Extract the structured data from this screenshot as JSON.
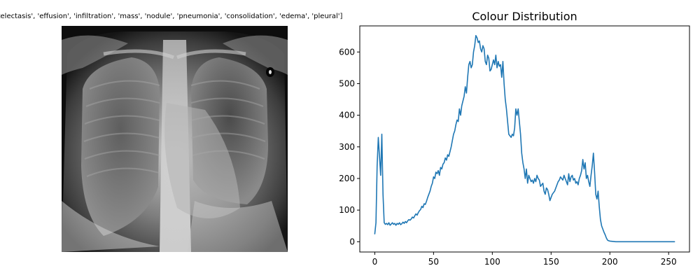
{
  "figure": {
    "image_panel": {
      "title": "bel: ['atelectasis', 'effusion', 'infiltration', 'mass', 'nodule', 'pneumonia', 'consolidation', 'edema', 'pleural']",
      "image_description": "chest-xray"
    }
  },
  "chart_data": {
    "type": "line",
    "title": "Colour Distribution",
    "xlabel": "",
    "ylabel": "",
    "xlim": [
      -12.75,
      267.75
    ],
    "ylim": [
      -32.5,
      682.5
    ],
    "xticks": [
      0,
      50,
      100,
      150,
      200,
      250
    ],
    "yticks": [
      0,
      100,
      200,
      300,
      400,
      500,
      600
    ],
    "grid": false,
    "legend": "none",
    "series": [
      {
        "color": "#1f77b4",
        "x": [
          0,
          1,
          2,
          3,
          4,
          5,
          6,
          7,
          8,
          9,
          10,
          11,
          12,
          13,
          14,
          15,
          16,
          17,
          18,
          19,
          20,
          21,
          22,
          23,
          24,
          25,
          26,
          27,
          28,
          29,
          30,
          31,
          32,
          33,
          34,
          35,
          36,
          37,
          38,
          39,
          40,
          41,
          42,
          43,
          44,
          45,
          46,
          47,
          48,
          49,
          50,
          51,
          52,
          53,
          54,
          55,
          56,
          57,
          58,
          59,
          60,
          61,
          62,
          63,
          64,
          65,
          66,
          67,
          68,
          69,
          70,
          71,
          72,
          73,
          74,
          75,
          76,
          77,
          78,
          79,
          80,
          81,
          82,
          83,
          84,
          85,
          86,
          87,
          88,
          89,
          90,
          91,
          92,
          93,
          94,
          95,
          96,
          97,
          98,
          99,
          100,
          101,
          102,
          103,
          104,
          105,
          106,
          107,
          108,
          109,
          110,
          111,
          112,
          113,
          114,
          115,
          116,
          117,
          118,
          119,
          120,
          121,
          122,
          123,
          124,
          125,
          126,
          127,
          128,
          129,
          130,
          131,
          132,
          133,
          134,
          135,
          136,
          137,
          138,
          139,
          140,
          141,
          142,
          143,
          144,
          145,
          146,
          147,
          148,
          149,
          150,
          151,
          152,
          153,
          154,
          155,
          156,
          157,
          158,
          159,
          160,
          161,
          162,
          163,
          164,
          165,
          166,
          167,
          168,
          169,
          170,
          171,
          172,
          173,
          174,
          175,
          176,
          177,
          178,
          179,
          180,
          181,
          182,
          183,
          184,
          185,
          186,
          187,
          188,
          189,
          190,
          191,
          192,
          193,
          194,
          195,
          196,
          197,
          198,
          199,
          200,
          205,
          210,
          215,
          220,
          225,
          230,
          235,
          240,
          245,
          250,
          255
        ],
        "y": [
          25,
          60,
          240,
          330,
          270,
          210,
          340,
          150,
          60,
          55,
          58,
          54,
          60,
          52,
          56,
          60,
          55,
          58,
          52,
          58,
          55,
          60,
          54,
          57,
          62,
          58,
          64,
          60,
          66,
          70,
          68,
          72,
          78,
          75,
          82,
          88,
          84,
          92,
          98,
          102,
          112,
          108,
          120,
          118,
          128,
          140,
          150,
          160,
          175,
          185,
          205,
          200,
          220,
          215,
          225,
          210,
          235,
          230,
          245,
          250,
          265,
          258,
          275,
          270,
          285,
          300,
          320,
          340,
          350,
          370,
          385,
          380,
          420,
          400,
          430,
          445,
          460,
          490,
          470,
          520,
          560,
          570,
          550,
          560,
          600,
          620,
          652,
          645,
          630,
          635,
          610,
          600,
          620,
          610,
          570,
          560,
          590,
          580,
          540,
          545,
          560,
          575,
          560,
          590,
          550,
          570,
          555,
          560,
          520,
          570,
          500,
          450,
          420,
          380,
          340,
          335,
          330,
          340,
          335,
          360,
          420,
          400,
          420,
          380,
          340,
          280,
          250,
          230,
          200,
          230,
          185,
          210,
          200,
          190,
          195,
          185,
          200,
          190,
          210,
          200,
          195,
          175,
          180,
          185,
          160,
          150,
          170,
          165,
          150,
          130,
          140,
          150,
          155,
          160,
          170,
          180,
          190,
          195,
          205,
          200,
          195,
          210,
          200,
          190,
          180,
          215,
          190,
          205,
          210,
          195,
          200,
          185,
          190,
          180,
          200,
          210,
          225,
          260,
          230,
          250,
          200,
          210,
          190,
          175,
          210,
          240,
          280,
          220,
          150,
          135,
          160,
          110,
          70,
          50,
          40,
          30,
          22,
          12,
          5,
          3,
          2,
          0,
          0,
          0,
          0,
          0,
          0,
          0,
          0,
          0,
          0,
          0
        ]
      }
    ]
  }
}
